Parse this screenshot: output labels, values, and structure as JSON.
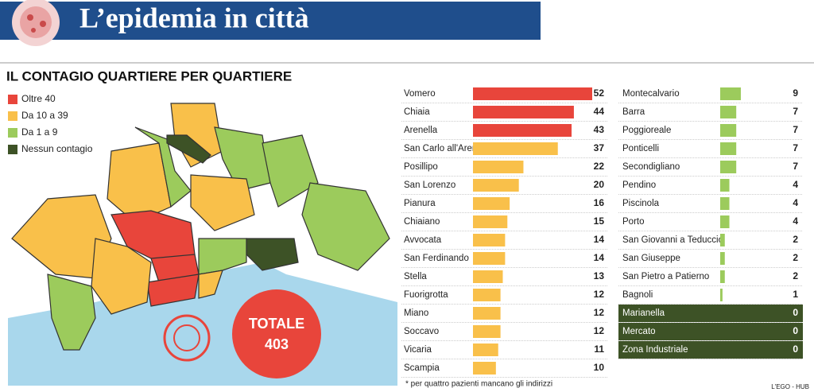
{
  "header": {
    "title": "L’epidemia in città"
  },
  "chart_data": {
    "type": "bar",
    "title": "IL CONTAGIO QUARTIERE PER QUARTIERE",
    "series": [
      {
        "name": "Oltre 40",
        "color": "#e8453b",
        "categories": [
          "Vomero",
          "Chiaia",
          "Arenella"
        ],
        "values": [
          52,
          44,
          43
        ]
      },
      {
        "name": "Da 10 a 39",
        "color": "#f9c04a",
        "categories": [
          "San Carlo all'Arena",
          "Posillipo",
          "San Lorenzo",
          "Pianura",
          "Chiaiano",
          "Avvocata",
          "San Ferdinando",
          "Stella",
          "Fuorigrotta",
          "Miano",
          "Soccavo",
          "Vicaria",
          "Scampia"
        ],
        "values": [
          37,
          22,
          20,
          16,
          15,
          14,
          14,
          13,
          12,
          12,
          12,
          11,
          10
        ]
      },
      {
        "name": "Da 1 a 9",
        "color": "#9ccb5c",
        "categories": [
          "Montecalvario",
          "Barra",
          "Poggioreale",
          "Ponticelli",
          "Secondigliano",
          "Pendino",
          "Piscinola",
          "Porto",
          "San Giovanni a Teduccio",
          "San Giuseppe",
          "San Pietro a Patierno",
          "Bagnoli"
        ],
        "values": [
          9,
          7,
          7,
          7,
          7,
          4,
          4,
          4,
          2,
          2,
          2,
          1
        ]
      },
      {
        "name": "Nessun contagio",
        "color": "#3d5226",
        "categories": [
          "Marianella",
          "Mercato",
          "Zona Industriale"
        ],
        "values": [
          0,
          0,
          0
        ]
      }
    ],
    "total": {
      "label": "TOTALE",
      "value": 403
    },
    "note": "* per quattro pazienti mancano gli indirizzi",
    "credit": "L'EGO - HUB"
  }
}
